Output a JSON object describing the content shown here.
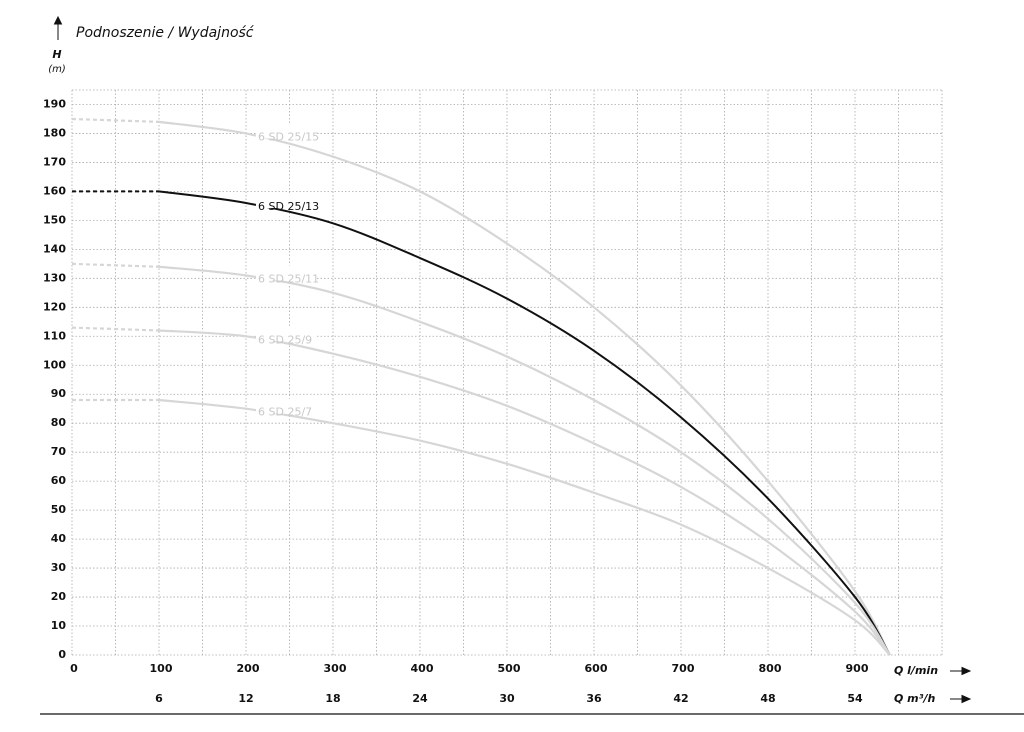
{
  "chart_data": {
    "type": "line",
    "title": "Podnoszenie / Wydajność",
    "ylabel": "H",
    "yunit": "(m)",
    "xlabel": "Q l/min",
    "x2label": "Q m³/h",
    "x": [
      0,
      100,
      200,
      300,
      400,
      500,
      600,
      700,
      800,
      900,
      940
    ],
    "series": [
      {
        "name": "6 SD 25/15",
        "color": "#d6d6d6",
        "dash_to": 100,
        "values": [
          185,
          184,
          180,
          172,
          160,
          142,
          120,
          93,
          60,
          22,
          0
        ]
      },
      {
        "name": "6 SD 25/13",
        "color": "#111111",
        "dash_to": 100,
        "values": [
          160,
          160,
          156,
          149,
          137,
          123,
          105,
          82,
          54,
          20,
          0
        ]
      },
      {
        "name": "6 SD 25/11",
        "color": "#d6d6d6",
        "dash_to": 100,
        "values": [
          135,
          134,
          131,
          125,
          115,
          103,
          88,
          70,
          47,
          18,
          0
        ]
      },
      {
        "name": "6 SD 25/9",
        "color": "#d6d6d6",
        "dash_to": 100,
        "values": [
          113,
          112,
          110,
          104,
          96,
          86,
          73,
          58,
          39,
          15,
          0
        ]
      },
      {
        "name": "6 SD 25/7",
        "color": "#d6d6d6",
        "dash_to": 100,
        "values": [
          88,
          88,
          85,
          80,
          74,
          66,
          56,
          45,
          30,
          12,
          0
        ]
      }
    ],
    "xlim": [
      0,
      1000
    ],
    "xticks": [
      0,
      100,
      200,
      300,
      400,
      500,
      600,
      700,
      800,
      900
    ],
    "xminorticks": [
      50,
      150,
      250,
      350,
      450,
      550,
      650,
      750,
      850,
      950,
      1000
    ],
    "x2lim": [
      0,
      60
    ],
    "x2ticks": [
      6,
      12,
      18,
      24,
      30,
      36,
      42,
      48,
      54
    ],
    "ylim": [
      0,
      195
    ],
    "yticks": [
      0,
      10,
      20,
      30,
      40,
      50,
      60,
      70,
      80,
      90,
      100,
      110,
      120,
      130,
      140,
      150,
      160,
      170,
      180,
      190
    ],
    "grid": true
  }
}
